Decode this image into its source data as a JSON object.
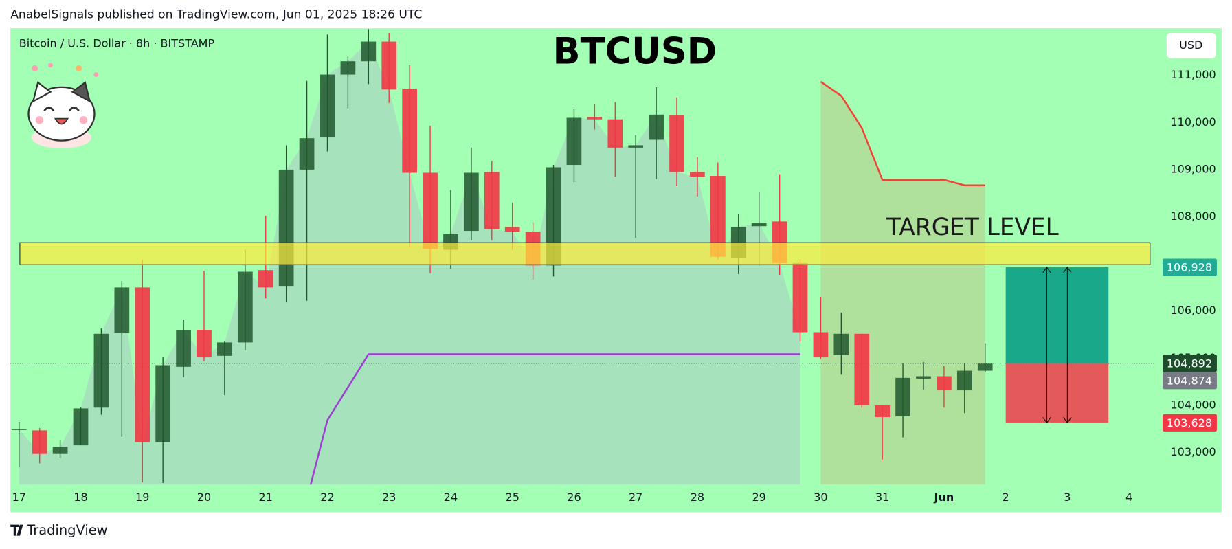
{
  "header": {
    "text": "AnabelSignals published on TradingView.com, Jun 01, 2025 18:26 UTC"
  },
  "footer": {
    "brand": "TradingView"
  },
  "chart_data": {
    "type": "candlestick",
    "title": "BTCUSD",
    "subtitle": "Bitcoin / U.S. Dollar · 8h · BITSTAMP",
    "currency": "USD",
    "categories": [
      "17",
      null,
      null,
      "18",
      null,
      null,
      "19",
      null,
      null,
      "20",
      null,
      null,
      "21",
      null,
      null,
      "22",
      null,
      null,
      "23",
      null,
      null,
      "24",
      null,
      null,
      "25",
      null,
      null,
      "26",
      null,
      null,
      "27",
      null,
      null,
      "28",
      null,
      null,
      "29",
      null,
      null,
      "30",
      null,
      null,
      "31",
      null,
      null,
      "Jun",
      null,
      null,
      "2",
      null,
      null,
      "3",
      null,
      null,
      "4"
    ],
    "open": [
      103480,
      103467,
      102967,
      103150,
      103950,
      105533,
      106500,
      103217,
      104817,
      105600,
      105050,
      105333,
      106867,
      106533,
      109000,
      109683,
      111017,
      111300,
      111717,
      110717,
      108933,
      107300,
      107700,
      108950,
      107783,
      107683,
      106967,
      109100,
      110117,
      110067,
      109467,
      109633,
      110150,
      108950,
      108867,
      107117,
      107800,
      107900,
      107017,
      105550,
      105067,
      105517,
      104000,
      103767,
      104567,
      104617,
      104317,
      104733,
      null,
      null,
      null,
      null,
      null,
      null,
      null
    ],
    "high": [
      103650,
      103517,
      103267,
      103967,
      105633,
      106633,
      107083,
      105017,
      105817,
      106850,
      105367,
      107300,
      108017,
      109517,
      110883,
      111867,
      111400,
      111983,
      111900,
      111217,
      109933,
      108567,
      109467,
      109183,
      108300,
      107883,
      109100,
      110283,
      110383,
      110433,
      109733,
      110750,
      110533,
      109267,
      109150,
      108050,
      108517,
      108900,
      107100,
      106300,
      105967,
      105517,
      104000,
      104900,
      104917,
      104833,
      104900,
      105317,
      null,
      null,
      null,
      null,
      null,
      null,
      null
    ],
    "low": [
      102683,
      102767,
      102883,
      103150,
      103800,
      103333,
      102367,
      102350,
      104600,
      104933,
      104217,
      105167,
      106267,
      106183,
      106217,
      109383,
      110300,
      110817,
      110417,
      107350,
      106800,
      106900,
      107500,
      107500,
      107300,
      106667,
      106733,
      108733,
      109850,
      108850,
      107550,
      108800,
      108650,
      108433,
      107083,
      106783,
      106967,
      106767,
      105350,
      104983,
      104650,
      103950,
      102850,
      103317,
      104333,
      103950,
      103833,
      104700,
      null,
      null,
      null,
      null,
      null,
      null,
      null
    ],
    "close": [
      103500,
      102967,
      103117,
      103933,
      105517,
      106500,
      103217,
      104850,
      105600,
      105017,
      105333,
      106833,
      106500,
      109000,
      109667,
      111017,
      111300,
      111717,
      110700,
      108933,
      107317,
      107633,
      108933,
      107733,
      107683,
      106967,
      109050,
      110100,
      110067,
      109467,
      109517,
      110167,
      108950,
      108850,
      107150,
      107783,
      107867,
      107017,
      105550,
      105017,
      105517,
      104000,
      103750,
      104583,
      104617,
      104317,
      104733,
      104883,
      null,
      null,
      null,
      null,
      null,
      null,
      null
    ],
    "up_color": "#22572e",
    "down_color": "#f23645",
    "lines": [
      {
        "color": "#9c3fd0",
        "values": [
          null,
          null,
          null,
          null,
          null,
          null,
          null,
          null,
          null,
          null,
          null,
          null,
          null,
          null,
          102000,
          103683,
          104383,
          105083,
          105083,
          105083,
          105083,
          105083,
          105083,
          105083,
          105083,
          105083,
          105083,
          105083,
          105083,
          105083,
          105083,
          105083,
          105083,
          105083,
          105083,
          105083,
          105083,
          105083,
          105083,
          null,
          null,
          null,
          null,
          null,
          null,
          null,
          null,
          null,
          null,
          null,
          null,
          null,
          null,
          null,
          null
        ]
      },
      {
        "color": "#f44336",
        "values": [
          null,
          null,
          null,
          null,
          null,
          null,
          null,
          null,
          null,
          null,
          null,
          null,
          null,
          null,
          null,
          null,
          null,
          null,
          null,
          null,
          null,
          null,
          null,
          null,
          null,
          null,
          null,
          null,
          null,
          null,
          null,
          null,
          null,
          null,
          null,
          null,
          null,
          null,
          null,
          110867,
          110567,
          109883,
          108783,
          108783,
          108783,
          108783,
          108667,
          108667,
          null,
          null,
          null,
          null,
          null,
          null,
          null
        ]
      }
    ],
    "ylim": [
      102317,
      112000
    ],
    "yticks": [
      {
        "value": 103000,
        "label": "103,000"
      },
      {
        "value": 104000,
        "label": "104,000"
      },
      {
        "value": 105000,
        "label": "105,000"
      },
      {
        "value": 106000,
        "label": "106,000"
      },
      {
        "value": 107000,
        "label": "107,000"
      },
      {
        "value": 108000,
        "label": "108,000"
      },
      {
        "value": 109000,
        "label": "109,000"
      },
      {
        "value": 110000,
        "label": "110,000"
      },
      {
        "value": 111000,
        "label": "111,000"
      }
    ],
    "zone": {
      "label": "TARGET LEVEL",
      "low": 106983,
      "high": 107450,
      "color": "#ffeb3b"
    },
    "position": {
      "target": 106928,
      "entry": 104892,
      "stop": 103628
    },
    "price_labels": [
      {
        "value": 106928,
        "label": "106,928",
        "color": "#22ab94"
      },
      {
        "value": 104892,
        "label": "104,892",
        "color": "#1e4d2b"
      },
      {
        "value": 104874,
        "label": "104,874",
        "color": "#787b86"
      },
      {
        "value": 103628,
        "label": "103,628",
        "color": "#f23645"
      }
    ]
  }
}
